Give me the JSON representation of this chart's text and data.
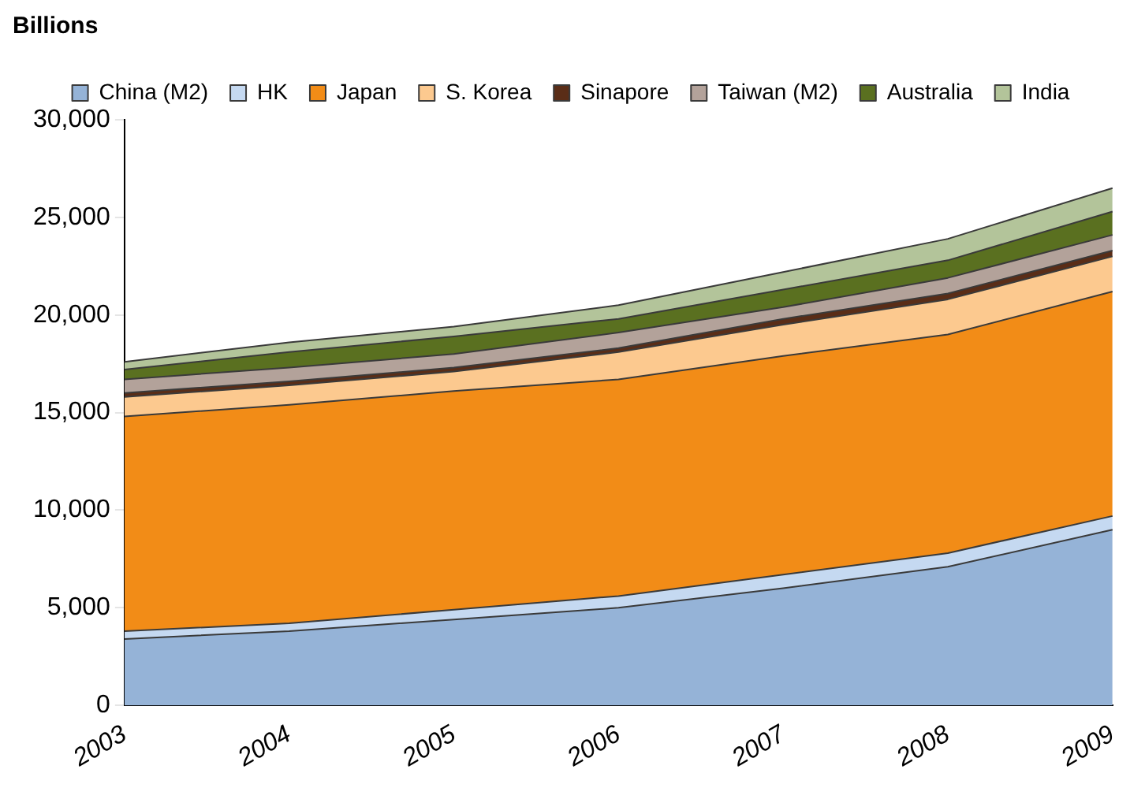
{
  "chart_data": {
    "type": "area",
    "ylabel": "Billions",
    "categories": [
      "2003",
      "2004",
      "2005",
      "2006",
      "2007",
      "2008",
      "2009"
    ],
    "stacked": true,
    "ylim": [
      0,
      30000
    ],
    "yticks": [
      0,
      {
        "value": 5000,
        "label": "5,000"
      },
      {
        "value": 10000,
        "label": "10,000"
      },
      {
        "value": 15000,
        "label": "15,000"
      },
      {
        "value": 20000,
        "label": "20,000"
      },
      {
        "value": 25000,
        "label": "25,000"
      },
      {
        "value": 30000,
        "label": "30,000"
      }
    ],
    "grid": false,
    "legend": "top",
    "series": [
      {
        "name": "China (M2)",
        "color": "#95b3d7",
        "values": [
          3400,
          3800,
          4400,
          5000,
          6000,
          7100,
          9000
        ]
      },
      {
        "name": "HK",
        "color": "#c5d9f1",
        "values": [
          400,
          400,
          500,
          600,
          700,
          700,
          700
        ]
      },
      {
        "name": "Japan",
        "color": "#f28c17",
        "values": [
          11000,
          11200,
          11200,
          11100,
          11200,
          11200,
          11500
        ]
      },
      {
        "name": "S. Korea",
        "color": "#fcc98f",
        "values": [
          1000,
          1000,
          1000,
          1400,
          1600,
          1800,
          1800
        ]
      },
      {
        "name": "Sinapore",
        "color": "#5a2d17",
        "values": [
          200,
          200,
          200,
          200,
          300,
          300,
          300
        ]
      },
      {
        "name": "Taiwan (M2)",
        "color": "#b3a29a",
        "values": [
          700,
          700,
          700,
          800,
          600,
          800,
          800
        ]
      },
      {
        "name": "Australia",
        "color": "#5a7020",
        "values": [
          500,
          800,
          900,
          700,
          900,
          900,
          1200
        ]
      },
      {
        "name": "India",
        "color": "#b3c49a",
        "values": [
          400,
          500,
          500,
          700,
          900,
          1100,
          1200
        ]
      }
    ]
  }
}
